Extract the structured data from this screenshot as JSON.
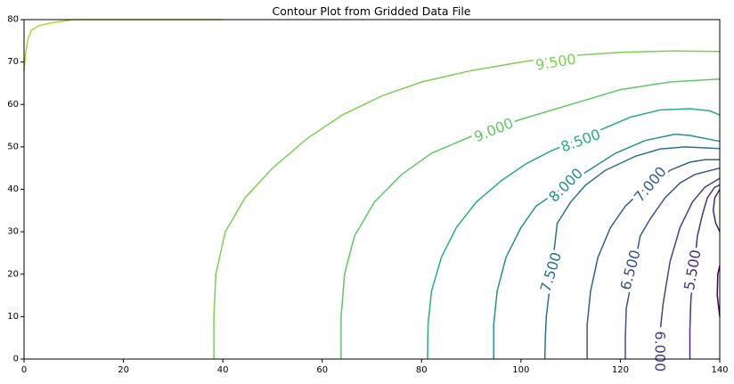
{
  "chart_data": {
    "type": "contour",
    "title": "Contour Plot from Gridded Data File",
    "xlabel": "",
    "ylabel": "",
    "xlim": [
      0,
      140
    ],
    "ylim": [
      0,
      80
    ],
    "x_ticks": [
      0,
      20,
      40,
      60,
      80,
      100,
      120,
      140
    ],
    "y_ticks": [
      0,
      10,
      20,
      30,
      40,
      50,
      60,
      70,
      80
    ],
    "grid": false,
    "levels": [
      {
        "level": 10.0,
        "label": "",
        "color": "#a8d832",
        "points": [
          [
            0,
            68
          ],
          [
            0.3,
            72
          ],
          [
            0.8,
            75.5
          ],
          [
            1.5,
            77.5
          ],
          [
            3,
            78.6
          ],
          [
            6,
            79.3
          ],
          [
            10,
            80
          ],
          [
            20,
            80
          ],
          [
            40,
            80
          ]
        ]
      },
      {
        "level": 9.5,
        "label": "9.500",
        "color": "#7ad151",
        "label_pos": [
          107,
          70
        ],
        "label_angle": -9,
        "points": [
          [
            38.2,
            0
          ],
          [
            38.2,
            10
          ],
          [
            38.6,
            20
          ],
          [
            40.5,
            30
          ],
          [
            44.5,
            38
          ],
          [
            50,
            45
          ],
          [
            57,
            52
          ],
          [
            64,
            57.5
          ],
          [
            72,
            62
          ],
          [
            80,
            65.3
          ],
          [
            90,
            68
          ],
          [
            101,
            70.2
          ],
          [
            110,
            71.5
          ],
          [
            120,
            72.3
          ],
          [
            130,
            72.6
          ],
          [
            140,
            72.5
          ]
        ]
      },
      {
        "level": 9.0,
        "label": "9.000",
        "color": "#5ec962",
        "label_pos": [
          94.5,
          54
        ],
        "label_angle": -22,
        "points": [
          [
            63.8,
            0
          ],
          [
            63.8,
            10
          ],
          [
            64.5,
            20
          ],
          [
            66.5,
            29
          ],
          [
            70.5,
            37
          ],
          [
            76,
            43.5
          ],
          [
            82,
            48.5
          ],
          [
            90,
            52.5
          ],
          [
            100,
            56.5
          ],
          [
            110,
            60
          ],
          [
            120,
            63.5
          ],
          [
            130,
            65.3
          ],
          [
            140,
            66
          ]
        ]
      },
      {
        "level": 8.5,
        "label": "8.500",
        "color": "#28ae80",
        "label_pos": [
          112,
          51.5
        ],
        "label_angle": -20,
        "points": [
          [
            81.2,
            0
          ],
          [
            81.3,
            8
          ],
          [
            82,
            16
          ],
          [
            84,
            24
          ],
          [
            87,
            31
          ],
          [
            91,
            37
          ],
          [
            96,
            42
          ],
          [
            101,
            46
          ],
          [
            106,
            49
          ],
          [
            116,
            54
          ],
          [
            122,
            57
          ],
          [
            128,
            58.7
          ],
          [
            134,
            59
          ],
          [
            138,
            58.5
          ],
          [
            140,
            57.5
          ]
        ]
      },
      {
        "level": 8.0,
        "label": "8.000",
        "color": "#21918c",
        "label_pos": [
          109,
          41
        ],
        "label_angle": -45,
        "points": [
          [
            94.5,
            0
          ],
          [
            94.5,
            8
          ],
          [
            95.2,
            16
          ],
          [
            97,
            24
          ],
          [
            100,
            31
          ],
          [
            103,
            36
          ],
          [
            113,
            44
          ],
          [
            119,
            48.5
          ],
          [
            125,
            51.5
          ],
          [
            131,
            53
          ],
          [
            134,
            52.7
          ],
          [
            140,
            51.3
          ]
        ]
      },
      {
        "level": 7.5,
        "label": "7.500",
        "color": "#2c728e",
        "label_pos": [
          106,
          20.5
        ],
        "label_angle": -73,
        "points": [
          [
            104.8,
            0
          ],
          [
            104.9,
            5
          ],
          [
            105.1,
            10
          ],
          [
            107.3,
            32
          ],
          [
            110,
            37
          ],
          [
            113,
            41
          ],
          [
            117,
            44.5
          ],
          [
            123,
            47.8
          ],
          [
            128,
            49.5
          ],
          [
            133,
            50
          ],
          [
            140,
            49.6
          ]
        ]
      },
      {
        "level": 7.0,
        "label": "7.000",
        "color": "#355f8d",
        "label_pos": [
          126,
          41.2
        ],
        "label_angle": -50,
        "points": [
          [
            113.3,
            0
          ],
          [
            113.3,
            8
          ],
          [
            114,
            16
          ],
          [
            115.5,
            24
          ],
          [
            118,
            31
          ],
          [
            121,
            36
          ],
          [
            123.6,
            38.9
          ],
          [
            130,
            44.5
          ],
          [
            134,
            46.4
          ],
          [
            137,
            47
          ],
          [
            140,
            47
          ]
        ]
      },
      {
        "level": 6.5,
        "label": "6.500",
        "color": "#3b528b",
        "label_pos": [
          122,
          21
        ],
        "label_angle": -75,
        "points": [
          [
            121,
            0
          ],
          [
            121,
            5
          ],
          [
            121.2,
            12
          ],
          [
            124,
            29
          ],
          [
            126,
            33
          ],
          [
            129,
            38
          ],
          [
            132,
            41.5
          ],
          [
            135,
            43.5
          ],
          [
            140,
            45
          ]
        ]
      },
      {
        "level": 6.0,
        "label": "6.000",
        "color": "#414487",
        "label_pos": [
          128,
          1.8
        ],
        "label_angle": 90,
        "points": [
          [
            128.1,
            7.5
          ],
          [
            128.6,
            13
          ],
          [
            130,
            23
          ],
          [
            132,
            31
          ],
          [
            134.5,
            37
          ],
          [
            137,
            40.5
          ],
          [
            140,
            42.6
          ]
        ]
      },
      {
        "level": 5.5,
        "label": "5.500",
        "color": "#46327e",
        "label_pos": [
          134.5,
          21
        ],
        "label_angle": -80,
        "points": [
          [
            134,
            0
          ],
          [
            134,
            7
          ],
          [
            134.2,
            14
          ],
          [
            135.5,
            29
          ],
          [
            136.5,
            34
          ],
          [
            137.5,
            38
          ],
          [
            139,
            40.5
          ],
          [
            140,
            41
          ]
        ]
      },
      {
        "level": 5.0,
        "label": "",
        "color": "#482374",
        "points": [
          [
            140,
            30
          ],
          [
            139.2,
            32
          ],
          [
            138.7,
            35
          ],
          [
            139,
            38
          ],
          [
            140,
            40
          ]
        ]
      },
      {
        "level": 4.5,
        "label": "",
        "color": "#440154",
        "points": [
          [
            140,
            10
          ],
          [
            139.5,
            15
          ],
          [
            139.6,
            20
          ],
          [
            140,
            22
          ]
        ]
      }
    ]
  }
}
